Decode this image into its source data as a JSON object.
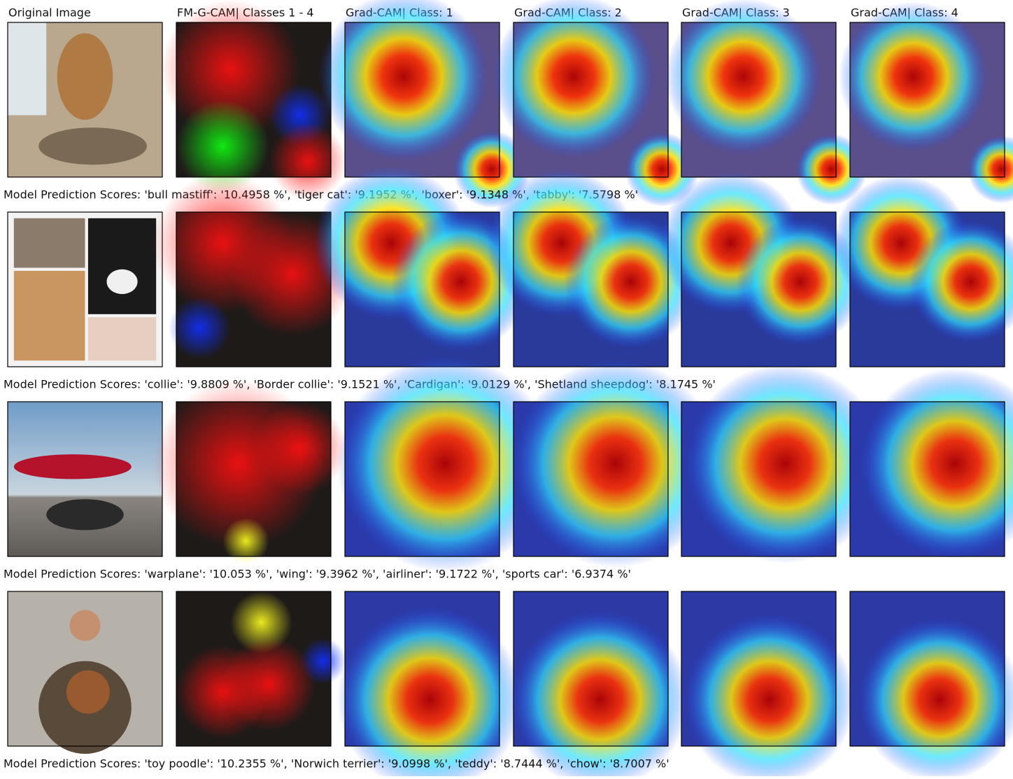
{
  "column_headers": [
    "Original Image",
    "FM-G-CAM| Classes 1 - 4",
    "Grad-CAM| Class: 1",
    "Grad-CAM| Class: 2",
    "Grad-CAM| Class: 3",
    "Grad-CAM| Class: 4"
  ],
  "rows": [
    {
      "caption": "Model Prediction Scores: 'bull mastiff': '10.4958 %', 'tiger cat': '9.1952 %', 'boxer': '9.1348 %', 'tabby': '7.5798 %'"
    },
    {
      "caption": "Model Prediction Scores: 'collie': '9.8809 %', 'Border collie': '9.1521 %', 'Cardigan': '9.0129 %', 'Shetland sheepdog': '8.1745 %'"
    },
    {
      "caption": "Model Prediction Scores: 'warplane': '10.053 %', 'wing': '9.3962 %', 'airliner': '9.1722 %', 'sports car': '6.9374 %'"
    },
    {
      "caption": "Model Prediction Scores: 'toy poodle': '10.2355 %', 'Norwich terrier': '9.0998 %', 'teddy': '8.7444 %', 'chow': '8.7007 %'"
    }
  ]
}
